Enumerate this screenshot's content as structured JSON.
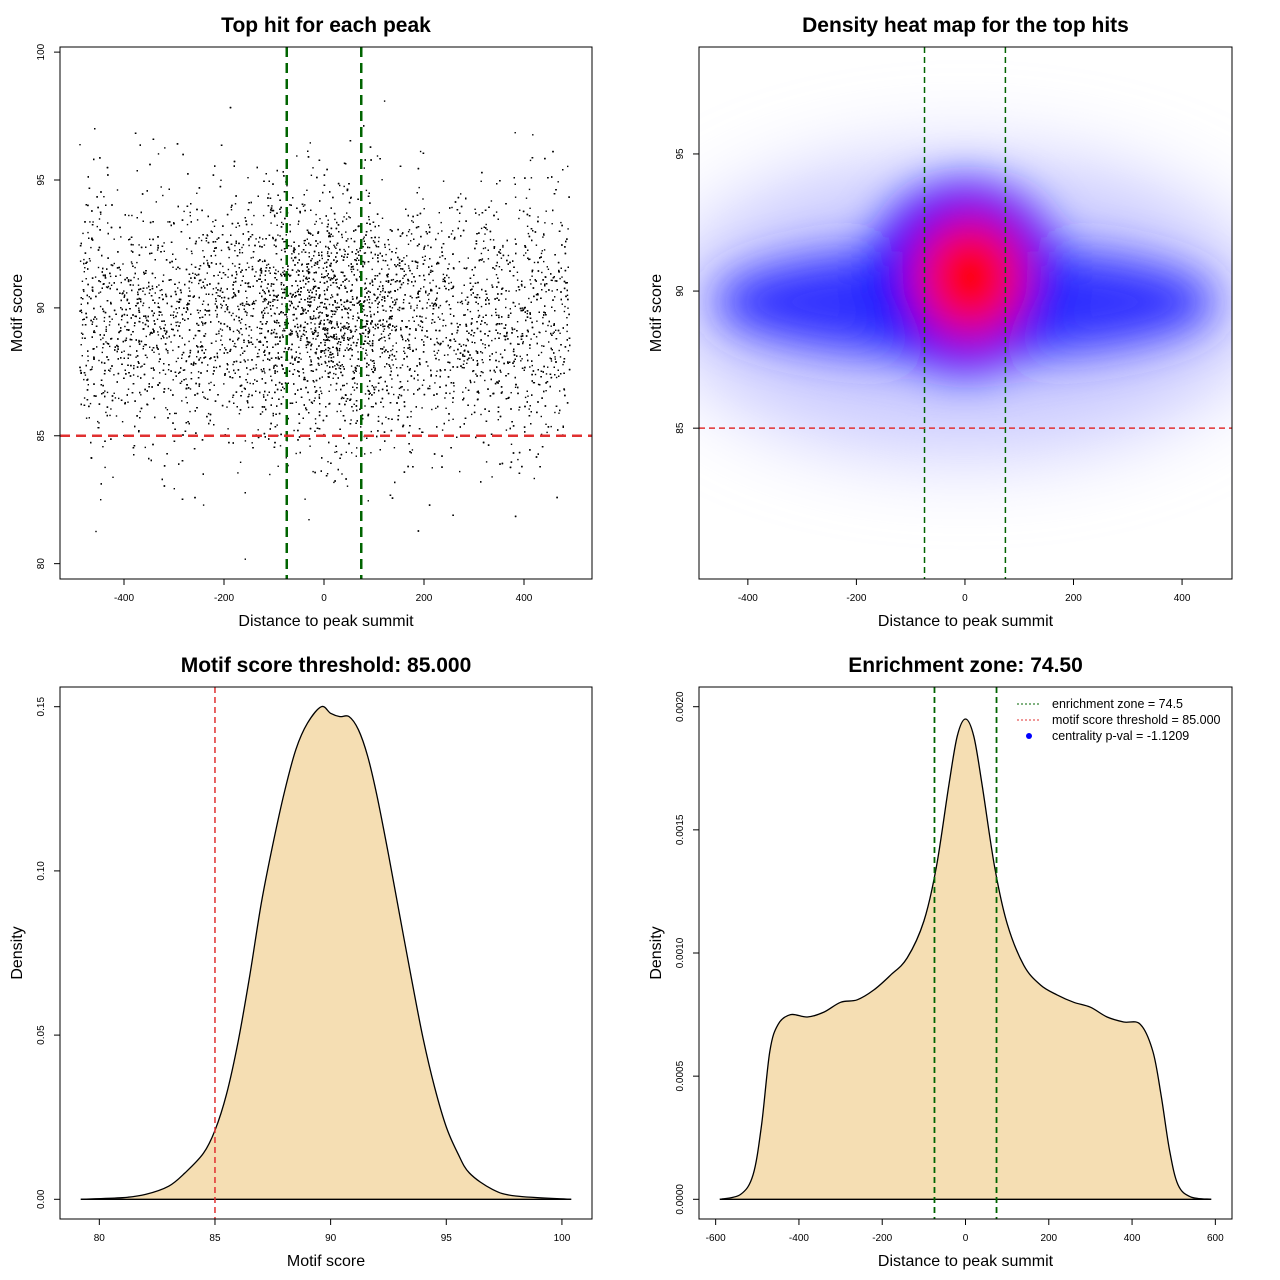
{
  "chart_data": [
    {
      "type": "scatter",
      "title": "Top hit for each peak",
      "xlabel": "Distance to peak summit",
      "ylabel": "Motif score",
      "xlim": [
        -528,
        536
      ],
      "ylim": [
        79.4,
        100.2
      ],
      "xticks": [
        -400,
        -200,
        0,
        200,
        400
      ],
      "yticks": [
        80,
        85,
        90,
        95,
        100
      ],
      "vlines": [
        -74.5,
        74.5
      ],
      "hline": 85,
      "colors": {
        "points": "#000000",
        "vlines": "#006400",
        "hline": "#e03030"
      }
    },
    {
      "type": "heatmap",
      "title": "Density heat map for the top hits",
      "xlabel": "Distance to peak summit",
      "ylabel": "Motif score",
      "xlim": [
        -490,
        492
      ],
      "ylim": [
        79.5,
        98.9
      ],
      "xticks": [
        -400,
        -200,
        0,
        200,
        400
      ],
      "yticks": [
        85,
        90,
        95
      ],
      "vlines": [
        -74.5,
        74.5
      ],
      "hline": 85,
      "peak": {
        "x": 10,
        "y": 90.5
      },
      "colors": {
        "low": "#ffffff",
        "mid": "#0000ff",
        "high": "#ff0000",
        "vlines": "#006400",
        "hline": "#e03030"
      }
    },
    {
      "type": "area",
      "title": "Motif score threshold: 85.000",
      "xlabel": "Motif score",
      "ylabel": "Density",
      "xlim": [
        78.3,
        101.3
      ],
      "ylim": [
        -0.006,
        0.156
      ],
      "xticks": [
        80,
        85,
        90,
        95,
        100
      ],
      "yticks": [
        0.0,
        0.05,
        0.1,
        0.15
      ],
      "ytick_labels": [
        "0.00",
        "0.05",
        "0.10",
        "0.15"
      ],
      "vline": 85,
      "x": [
        79.2,
        81,
        82,
        83,
        83.7,
        84.5,
        85,
        85.5,
        86,
        86.5,
        87,
        87.5,
        88,
        88.5,
        89,
        89.6,
        90,
        90.4,
        90.8,
        91.2,
        91.6,
        92,
        92.5,
        93,
        93.5,
        94,
        94.5,
        95,
        95.5,
        96,
        97,
        98,
        100.4
      ],
      "y": [
        0,
        0.0005,
        0.0015,
        0.004,
        0.008,
        0.014,
        0.021,
        0.032,
        0.048,
        0.068,
        0.09,
        0.108,
        0.124,
        0.137,
        0.145,
        0.15,
        0.148,
        0.147,
        0.147,
        0.143,
        0.135,
        0.123,
        0.105,
        0.086,
        0.067,
        0.049,
        0.034,
        0.022,
        0.014,
        0.008,
        0.003,
        0.001,
        0
      ],
      "colors": {
        "fill": "#f5deb3",
        "line": "#000000",
        "vline": "#e03030"
      }
    },
    {
      "type": "area",
      "title": "Enrichment zone: 74.50",
      "xlabel": "Distance to peak summit",
      "ylabel": "Density",
      "xlim": [
        -640,
        640
      ],
      "ylim": [
        -8e-05,
        0.00208
      ],
      "xticks": [
        -600,
        -400,
        -200,
        0,
        200,
        400,
        600
      ],
      "yticks": [
        0,
        0.0005,
        0.001,
        0.0015,
        0.002
      ],
      "ytick_labels": [
        "0.0000",
        "0.0005",
        "0.0010",
        "0.0015",
        "0.0020"
      ],
      "vlines": [
        -74.5,
        74.5
      ],
      "x": [
        -590,
        -540,
        -510,
        -490,
        -470,
        -450,
        -420,
        -380,
        -340,
        -300,
        -260,
        -220,
        -180,
        -140,
        -100,
        -70,
        -40,
        -20,
        0,
        20,
        40,
        70,
        100,
        140,
        180,
        220,
        260,
        300,
        340,
        380,
        420,
        450,
        470,
        490,
        510,
        540,
        590
      ],
      "y": [
        0,
        2e-05,
        0.0001,
        0.0003,
        0.0006,
        0.00071,
        0.00075,
        0.00074,
        0.00076,
        0.0008,
        0.00081,
        0.00085,
        0.00091,
        0.00098,
        0.00113,
        0.00135,
        0.00168,
        0.00188,
        0.00195,
        0.00188,
        0.00168,
        0.00135,
        0.00112,
        0.00095,
        0.00087,
        0.00083,
        0.0008,
        0.00078,
        0.00074,
        0.00072,
        0.00071,
        0.0006,
        0.00042,
        0.0002,
        6e-05,
        1e-05,
        0
      ],
      "legend": [
        {
          "label": "enrichment zone = 74.5",
          "color": "#006400",
          "symbol": "dotted-line"
        },
        {
          "label": "motif score threshold = 85.000",
          "color": "#e03030",
          "symbol": "dotted-line"
        },
        {
          "label": "centrality p-val = -1.1209",
          "color": "#0000ff",
          "symbol": "dot"
        }
      ],
      "legend_position": "top-right",
      "colors": {
        "fill": "#f5deb3",
        "line": "#000000",
        "vlines": "#006400"
      }
    }
  ]
}
